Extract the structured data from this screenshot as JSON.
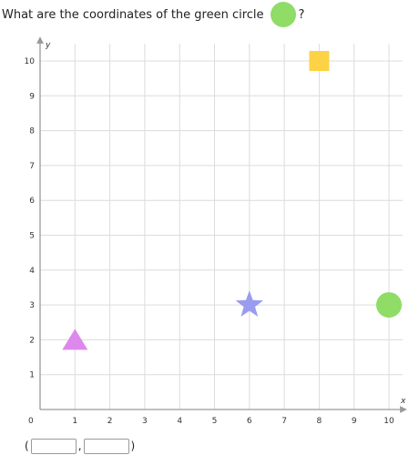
{
  "question": {
    "prefix": "What are the coordinates of the green circle",
    "suffix": "?",
    "circle_color": "#8fdc67"
  },
  "grid": {
    "x_axis_label": "x",
    "y_axis_label": "y",
    "origin_label": "0",
    "x_range": [
      0,
      10
    ],
    "y_range": [
      0,
      10
    ],
    "x_ticks": [
      "1",
      "2",
      "3",
      "4",
      "5",
      "6",
      "7",
      "8",
      "9",
      "10"
    ],
    "y_ticks": [
      "1",
      "2",
      "3",
      "4",
      "5",
      "6",
      "7",
      "8",
      "9",
      "10"
    ],
    "grid_color": "#dcdcdc",
    "axis_color": "#9a9a9a"
  },
  "shapes": [
    {
      "name": "yellow-square",
      "shape": "square",
      "x": 8,
      "y": 10,
      "color": "#fdd244"
    },
    {
      "name": "purple-star",
      "shape": "star",
      "x": 6,
      "y": 3,
      "color": "#9a9cf0"
    },
    {
      "name": "green-circle",
      "shape": "circle",
      "x": 10,
      "y": 3,
      "color": "#8fdc67"
    },
    {
      "name": "magenta-triangle",
      "shape": "triangle",
      "x": 1,
      "y": 2,
      "color": "#dd88ec"
    }
  ],
  "answer": {
    "open_paren": "(",
    "comma": ",",
    "close_paren": ")",
    "x_value": "",
    "y_value": ""
  }
}
